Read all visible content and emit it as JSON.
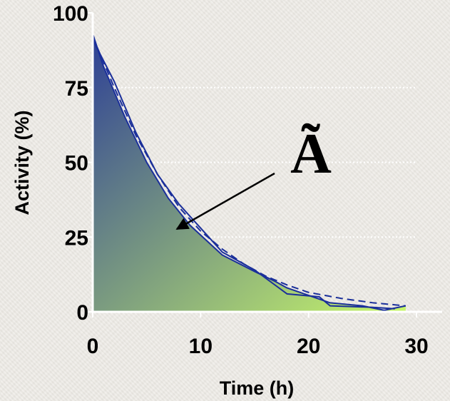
{
  "chart_data": {
    "type": "area",
    "title": "",
    "xlabel": "Time (h)",
    "ylabel": "Activity (%)",
    "xlim": [
      0,
      30
    ],
    "ylim": [
      0,
      100
    ],
    "xticks": [
      0,
      10,
      20,
      30
    ],
    "yticks": [
      0,
      25,
      50,
      75,
      100
    ],
    "grid": "horizontal-dotted",
    "annotation": "Ã",
    "fill_gradient": [
      "#2d3f96",
      "#c8f76a"
    ],
    "line_color": "#1a2f9a",
    "series": [
      {
        "style": "solid",
        "x": [
          0,
          1,
          3,
          5,
          7,
          9,
          12,
          15,
          17,
          18,
          20,
          22,
          25,
          27,
          29
        ],
        "y": [
          93,
          82,
          65,
          50,
          38,
          29,
          19,
          13.5,
          10,
          8,
          5.5,
          3,
          2,
          0.5,
          2
        ]
      },
      {
        "style": "solid",
        "x": [
          0,
          2,
          4,
          6,
          8,
          10,
          12,
          15,
          18,
          21,
          22,
          26,
          28
        ],
        "y": [
          91,
          77,
          60,
          46,
          36,
          28,
          20,
          14,
          6,
          5,
          2,
          1.5,
          1
        ]
      },
      {
        "style": "dashed",
        "x": [
          0,
          2,
          4,
          6,
          8,
          10,
          12,
          14,
          16,
          18,
          20,
          23,
          26,
          29
        ],
        "y": [
          92,
          75,
          59,
          46,
          35,
          27,
          21,
          16,
          12,
          9,
          6.5,
          4.5,
          3,
          2
        ]
      }
    ]
  }
}
